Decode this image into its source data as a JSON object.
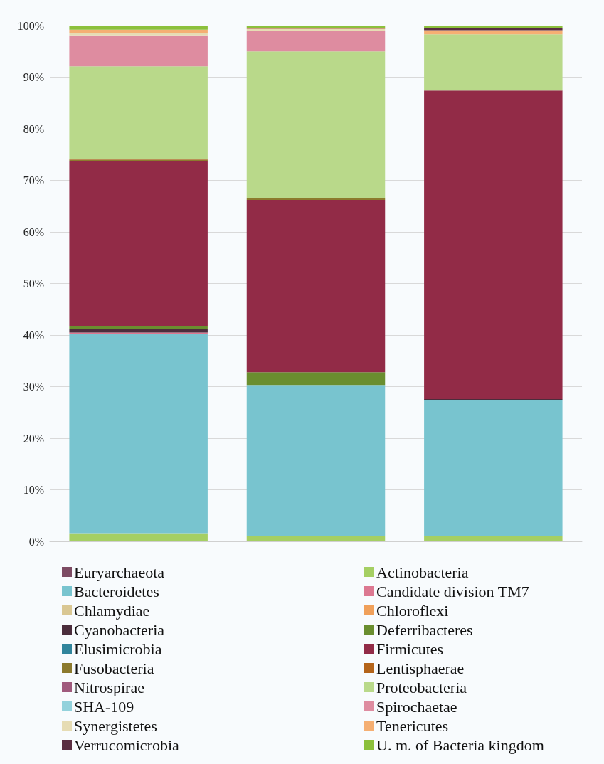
{
  "chart_data": {
    "type": "bar",
    "stacked": true,
    "categories": [
      null,
      null,
      null
    ],
    "ylim": [
      0,
      100
    ],
    "yticks": [
      {
        "value": 0,
        "label": "0%"
      },
      {
        "value": 10,
        "label": "10%"
      },
      {
        "value": 20,
        "label": "20%"
      },
      {
        "value": 30,
        "label": "30%"
      },
      {
        "value": 40,
        "label": "40%"
      },
      {
        "value": 50,
        "label": "50%"
      },
      {
        "value": 60,
        "label": "60%"
      },
      {
        "value": 70,
        "label": "70%"
      },
      {
        "value": 80,
        "label": "80%"
      },
      {
        "value": 90,
        "label": "90%"
      },
      {
        "value": 100,
        "label": "100%"
      }
    ],
    "grid": "y",
    "legend": "bottom",
    "tick_labels": "y",
    "series": [
      {
        "name": "Euryarchaeota",
        "color": "#7d4b63",
        "values": [
          0,
          0,
          0
        ]
      },
      {
        "name": "Actinobacteria",
        "color": "#a5cf63",
        "values": [
          1.6,
          1.1,
          1.1
        ]
      },
      {
        "name": "Bacteroidetes",
        "color": "#78c4cf",
        "values": [
          38.6,
          29.2,
          26.2
        ]
      },
      {
        "name": "Candidate division TM7",
        "color": "#dc7891",
        "values": [
          0.3,
          0,
          0
        ]
      },
      {
        "name": "Chlamydiae",
        "color": "#d9c793",
        "values": [
          0,
          0,
          0
        ]
      },
      {
        "name": "Chloroflexi",
        "color": "#f0a05a",
        "values": [
          0,
          0,
          0
        ]
      },
      {
        "name": "Cyanobacteria",
        "color": "#4b2d3c",
        "values": [
          0.6,
          0,
          0.3
        ]
      },
      {
        "name": "Deferribacteres",
        "color": "#6a8e2f",
        "values": [
          0.7,
          2.5,
          0
        ]
      },
      {
        "name": "Elusimicrobia",
        "color": "#31859c",
        "values": [
          0,
          0,
          0
        ]
      },
      {
        "name": "Firmicutes",
        "color": "#922b47",
        "values": [
          32.0,
          33.4,
          59.8
        ]
      },
      {
        "name": "Fusobacteria",
        "color": "#8c7a2d",
        "values": [
          0.2,
          0.3,
          0
        ]
      },
      {
        "name": "Lentisphaerae",
        "color": "#b4641a",
        "values": [
          0.1,
          0,
          0
        ]
      },
      {
        "name": "Nitrospirae",
        "color": "#a05a7d",
        "values": [
          0,
          0,
          0
        ]
      },
      {
        "name": "Proteobacteria",
        "color": "#b9d98a",
        "values": [
          18.0,
          28.5,
          10.9
        ]
      },
      {
        "name": "SHA-109",
        "color": "#93d2dc",
        "values": [
          0,
          0,
          0
        ]
      },
      {
        "name": "Spirochaetae",
        "color": "#de8ca0",
        "values": [
          6.0,
          4.0,
          0
        ]
      },
      {
        "name": "Synergistetes",
        "color": "#e6dcb4",
        "values": [
          0.4,
          0.3,
          0
        ]
      },
      {
        "name": "Tenericutes",
        "color": "#f5af73",
        "values": [
          0.7,
          0.1,
          0.8
        ]
      },
      {
        "name": "Verrucomicrobia",
        "color": "#5a2d41",
        "values": [
          null,
          0.2,
          0.4
        ]
      },
      {
        "name": "U. m. of Bacteria kingdom",
        "color": "#8cc03c",
        "values": [
          0.8,
          0.4,
          0.5
        ]
      }
    ]
  }
}
